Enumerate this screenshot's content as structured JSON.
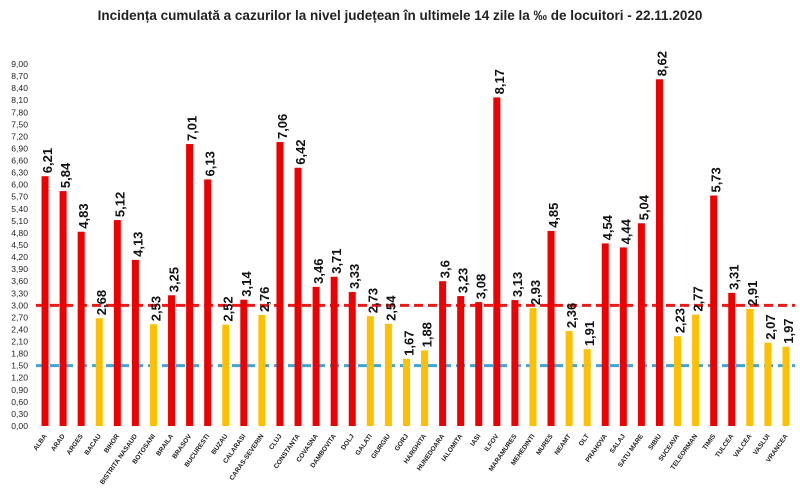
{
  "chart_data": {
    "type": "bar",
    "title": "Incidența cumulată a cazurilor la nivel județean în ultimele 14 zile la ‰ de locuitori - 22.11.2020",
    "xlabel": "",
    "ylabel": "",
    "ylim": [
      0,
      9
    ],
    "ytick_step": 0.3,
    "grid": false,
    "legend": "none",
    "categories": [
      "ALBA",
      "ARAD",
      "ARGES",
      "BACAU",
      "BIHOR",
      "BISTRITA NASAUD",
      "BOTOSANI",
      "BRAILA",
      "BRASOV",
      "BUCURESTI",
      "BUZAU",
      "CALARASI",
      "CARAS-SEVERIN",
      "CLUJ",
      "CONSTANTA",
      "COVASNA",
      "DAMBOVITA",
      "DOLJ",
      "GALATI",
      "GIURGIU",
      "GORJ",
      "HARGHITA",
      "HUNEDOARA",
      "IALOMITA",
      "IASI",
      "ILFOV",
      "MARAMURES",
      "MEHEDINTI",
      "MURES",
      "NEAMT",
      "OLT",
      "PRAHOVA",
      "SALAJ",
      "SATU MARE",
      "SIBIU",
      "SUCEAVA",
      "TELEORMAN",
      "TIMIS",
      "TULCEA",
      "VALCEA",
      "VASLUI",
      "VRANCEA"
    ],
    "values": [
      6.21,
      5.84,
      4.83,
      2.68,
      5.12,
      4.13,
      2.53,
      3.25,
      7.01,
      6.13,
      2.52,
      3.14,
      2.76,
      7.06,
      6.42,
      3.46,
      3.71,
      3.33,
      2.73,
      2.54,
      1.67,
      1.88,
      3.6,
      3.23,
      3.08,
      8.17,
      3.13,
      2.93,
      4.85,
      2.36,
      1.91,
      4.54,
      4.44,
      5.04,
      8.62,
      2.23,
      2.77,
      5.73,
      3.31,
      2.91,
      2.07,
      1.97
    ],
    "value_labels": [
      "6,21",
      "5,84",
      "4,83",
      "2,68",
      "5,12",
      "4,13",
      "2,53",
      "3,25",
      "7,01",
      "6,13",
      "2,52",
      "3,14",
      "2,76",
      "7,06",
      "6,42",
      "3,46",
      "3,71",
      "3,33",
      "2,73",
      "2,54",
      "1,67",
      "1,88",
      "3,6",
      "3,23",
      "3,08",
      "8,17",
      "3,13",
      "2,93",
      "4,85",
      "2,36",
      "1,91",
      "4,54",
      "4,44",
      "5,04",
      "8,62",
      "2,23",
      "2,77",
      "5,73",
      "3,31",
      "2,91",
      "2,07",
      "1,97"
    ],
    "bar_colors": [
      "red",
      "red",
      "red",
      "yellow",
      "red",
      "red",
      "yellow",
      "red",
      "red",
      "red",
      "yellow",
      "red",
      "yellow",
      "red",
      "red",
      "red",
      "red",
      "red",
      "yellow",
      "yellow",
      "yellow",
      "yellow",
      "red",
      "red",
      "red",
      "red",
      "red",
      "yellow",
      "red",
      "yellow",
      "yellow",
      "red",
      "red",
      "red",
      "red",
      "yellow",
      "yellow",
      "red",
      "red",
      "yellow",
      "yellow",
      "yellow"
    ],
    "reference_lines": [
      {
        "value": 3.0,
        "color": "#e81b1b",
        "style": "dashed"
      },
      {
        "value": 1.5,
        "color": "#3aa6dc",
        "style": "dashed"
      }
    ],
    "colors": {
      "red": "#ee0000",
      "yellow": "#ffc000"
    }
  }
}
